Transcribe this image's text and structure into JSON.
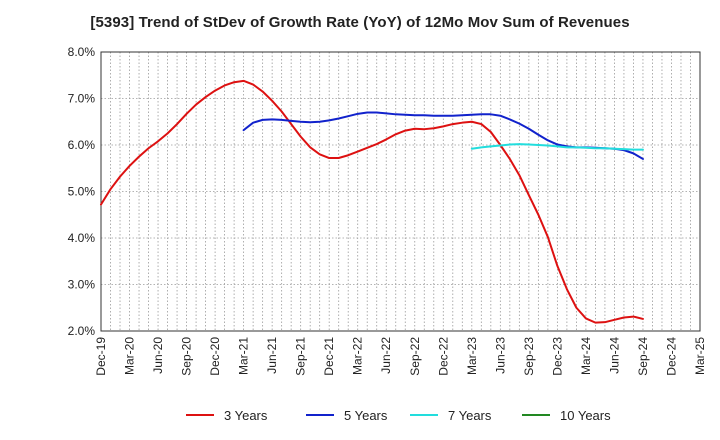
{
  "chart_data": {
    "type": "line",
    "title": "[5393]  Trend of StDev of Growth Rate (YoY) of 12Mo Mov Sum of Revenues",
    "xlabel": "",
    "ylabel": "",
    "ylim": [
      2.0,
      8.0
    ],
    "y_ticks": [
      "2.0%",
      "3.0%",
      "4.0%",
      "5.0%",
      "6.0%",
      "7.0%",
      "8.0%"
    ],
    "x_tick_labels": [
      "Dec-19",
      "Mar-20",
      "Jun-20",
      "Sep-20",
      "Dec-20",
      "Mar-21",
      "Jun-21",
      "Sep-21",
      "Dec-21",
      "Mar-22",
      "Jun-22",
      "Sep-22",
      "Dec-22",
      "Mar-23",
      "Jun-23",
      "Sep-23",
      "Dec-23",
      "Mar-24",
      "Jun-24",
      "Sep-24",
      "Dec-24",
      "Mar-25"
    ],
    "grid": true,
    "legend_position": "bottom",
    "series": [
      {
        "name": "3 Years",
        "color": "#dd1111",
        "start_month": 0,
        "values": [
          4.72,
          5.05,
          5.32,
          5.55,
          5.75,
          5.93,
          6.08,
          6.25,
          6.45,
          6.67,
          6.87,
          7.03,
          7.17,
          7.28,
          7.35,
          7.38,
          7.3,
          7.15,
          6.95,
          6.72,
          6.45,
          6.18,
          5.95,
          5.8,
          5.72,
          5.72,
          5.78,
          5.86,
          5.94,
          6.02,
          6.12,
          6.23,
          6.31,
          6.35,
          6.34,
          6.36,
          6.4,
          6.45,
          6.48,
          6.5,
          6.45,
          6.28,
          6.0,
          5.7,
          5.35,
          4.92,
          4.5,
          4.02,
          3.4,
          2.9,
          2.5,
          2.27,
          2.18,
          2.19,
          2.24,
          2.29,
          2.31,
          2.26
        ]
      },
      {
        "name": "5 Years",
        "color": "#1122cc",
        "start_month": 15,
        "values": [
          6.32,
          6.48,
          6.54,
          6.55,
          6.54,
          6.52,
          6.5,
          6.49,
          6.5,
          6.53,
          6.57,
          6.62,
          6.67,
          6.7,
          6.7,
          6.68,
          6.66,
          6.65,
          6.64,
          6.64,
          6.63,
          6.63,
          6.63,
          6.64,
          6.65,
          6.66,
          6.66,
          6.63,
          6.55,
          6.46,
          6.35,
          6.22,
          6.1,
          6.01,
          5.97,
          5.95,
          5.95,
          5.94,
          5.93,
          5.92,
          5.89,
          5.82,
          5.7
        ]
      },
      {
        "name": "7 Years",
        "color": "#22dddd",
        "start_month": 39,
        "values": [
          5.92,
          5.95,
          5.97,
          5.99,
          6.01,
          6.02,
          6.01,
          6.0,
          5.99,
          5.97,
          5.95,
          5.95,
          5.94,
          5.93,
          5.93,
          5.92,
          5.91,
          5.9,
          5.9
        ]
      },
      {
        "name": "10 Years",
        "color": "#228822",
        "start_month": 0,
        "values": []
      }
    ]
  }
}
